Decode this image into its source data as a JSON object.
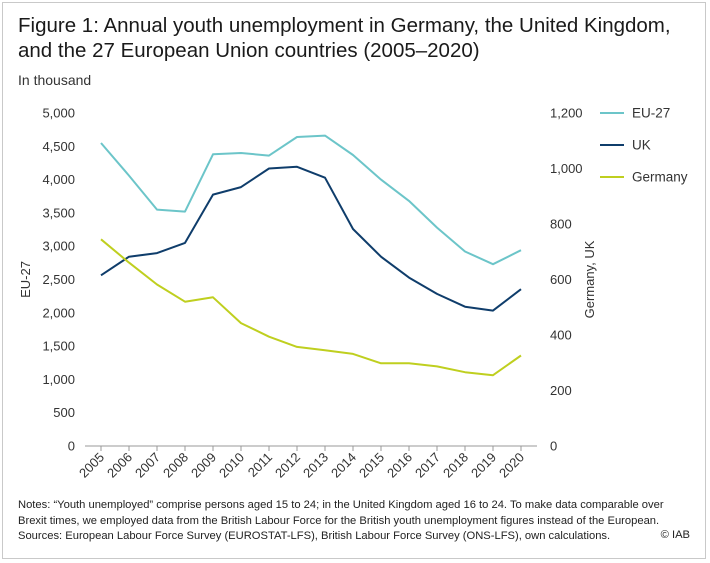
{
  "figure": {
    "title_line1": "Figure 1: Annual youth unemployment in Germany, the United Kingdom,",
    "title_line2": "and the 27 European Union countries  (2005–2020)",
    "unit_label": "In thousand",
    "notes_line1": "Notes: “Youth unemployed” comprise persons aged 15 to 24; in the United Kingdom aged 16 to 24. To make data comparable over",
    "notes_line2": "Brexit times, we employed data from the British Labour Force for the British youth unemployment figures instead of the European.",
    "sources": "Sources: European Labour Force Survey (EUROSTAT-LFS), British Labour Force Survey (ONS-LFS), own calculations.",
    "copyright": "© IAB"
  },
  "chart_data": {
    "type": "line",
    "x": [
      "2005",
      "2006",
      "2007",
      "2008",
      "2009",
      "2010",
      "2011",
      "2012",
      "2013",
      "2014",
      "2015",
      "2016",
      "2017",
      "2018",
      "2019",
      "2020"
    ],
    "left_axis": {
      "label": "EU-27",
      "ylim": [
        0,
        5000
      ],
      "ticks": [
        "0",
        "500",
        "1,000",
        "1,500",
        "2,000",
        "2,500",
        "3,000",
        "3,500",
        "4,000",
        "4,500",
        "5,000"
      ]
    },
    "right_axis": {
      "label": "Germany, UK",
      "ylim": [
        0,
        1200
      ],
      "ticks": [
        "0",
        "200",
        "400",
        "600",
        "800",
        "1,000",
        "1,200"
      ]
    },
    "series": [
      {
        "name": "EU-27",
        "axis": "left",
        "color": "#6cc5c9",
        "values": [
          4550,
          4060,
          3550,
          3520,
          4380,
          4400,
          4360,
          4640,
          4660,
          4370,
          4000,
          3680,
          3280,
          2920,
          2730,
          2940
        ]
      },
      {
        "name": "UK",
        "axis": "right",
        "color": "#0f3d6b",
        "values": [
          615,
          682,
          695,
          732,
          906,
          933,
          1000,
          1006,
          967,
          782,
          682,
          607,
          548,
          502,
          488,
          565
        ]
      },
      {
        "name": "Germany",
        "axis": "right",
        "color": "#bfcf1f",
        "values": [
          745,
          661,
          582,
          520,
          536,
          443,
          394,
          357,
          345,
          332,
          298,
          298,
          287,
          266,
          255,
          326
        ]
      }
    ],
    "legend": {
      "position": "right"
    },
    "grid": false
  }
}
